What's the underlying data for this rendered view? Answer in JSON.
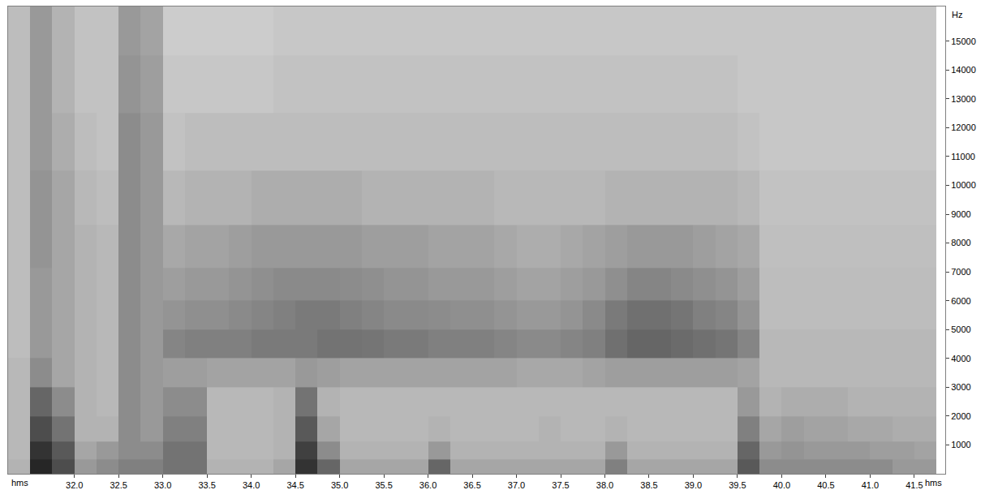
{
  "chart_data": {
    "type": "heatmap",
    "x_label": "hms",
    "y_label": "Hz",
    "x": [
      31.375,
      31.625,
      31.875,
      32.125,
      32.375,
      32.625,
      32.875,
      33.125,
      33.375,
      33.625,
      33.875,
      34.125,
      34.375,
      34.625,
      34.875,
      35.125,
      35.375,
      35.625,
      35.875,
      36.125,
      36.375,
      36.625,
      36.875,
      37.125,
      37.375,
      37.625,
      37.875,
      38.125,
      38.375,
      38.625,
      38.875,
      39.125,
      39.375,
      39.625,
      39.875,
      40.125,
      40.375,
      40.625,
      40.875,
      41.125,
      41.375,
      41.625
    ],
    "y": [
      250,
      750,
      1500,
      2500,
      3500,
      4500,
      5500,
      6500,
      7750,
      9500,
      11500,
      13500,
      15500
    ],
    "cells": [
      [
        30,
        85,
        70,
        40,
        45,
        50,
        50,
        55,
        55,
        30,
        30,
        30,
        35,
        80,
        60,
        35,
        35,
        35,
        35,
        60,
        35,
        35,
        35,
        35,
        35,
        35,
        35,
        50,
        35,
        35,
        35,
        35,
        35,
        65,
        45,
        45,
        45,
        45,
        45,
        45,
        40,
        40
      ],
      [
        28,
        80,
        65,
        35,
        40,
        45,
        45,
        55,
        55,
        28,
        28,
        28,
        30,
        75,
        45,
        30,
        30,
        30,
        30,
        40,
        30,
        30,
        30,
        30,
        30,
        30,
        30,
        40,
        30,
        30,
        30,
        30,
        30,
        60,
        40,
        42,
        40,
        40,
        40,
        38,
        38,
        36
      ],
      [
        28,
        70,
        55,
        30,
        30,
        45,
        40,
        50,
        50,
        28,
        28,
        28,
        30,
        65,
        35,
        28,
        28,
        28,
        28,
        30,
        28,
        28,
        28,
        28,
        30,
        28,
        28,
        30,
        28,
        28,
        28,
        28,
        28,
        50,
        35,
        38,
        36,
        36,
        34,
        34,
        32,
        32
      ],
      [
        28,
        60,
        45,
        30,
        28,
        45,
        40,
        45,
        45,
        28,
        28,
        28,
        30,
        55,
        30,
        28,
        28,
        28,
        28,
        28,
        28,
        28,
        28,
        28,
        28,
        28,
        28,
        28,
        28,
        28,
        28,
        28,
        28,
        40,
        30,
        32,
        32,
        32,
        30,
        30,
        30,
        30
      ],
      [
        28,
        45,
        35,
        30,
        28,
        45,
        40,
        38,
        38,
        36,
        36,
        36,
        36,
        40,
        38,
        36,
        36,
        36,
        36,
        36,
        36,
        36,
        36,
        34,
        34,
        34,
        36,
        38,
        38,
        38,
        38,
        38,
        38,
        36,
        28,
        28,
        28,
        28,
        28,
        28,
        28,
        28
      ],
      [
        26,
        40,
        35,
        30,
        28,
        45,
        40,
        48,
        50,
        50,
        50,
        52,
        52,
        52,
        55,
        55,
        54,
        52,
        52,
        50,
        50,
        50,
        48,
        46,
        46,
        48,
        50,
        56,
        60,
        60,
        58,
        56,
        54,
        48,
        28,
        28,
        28,
        28,
        28,
        28,
        28,
        28
      ],
      [
        26,
        40,
        35,
        30,
        28,
        45,
        40,
        42,
        44,
        44,
        46,
        48,
        50,
        52,
        52,
        50,
        48,
        46,
        46,
        45,
        44,
        44,
        42,
        40,
        40,
        42,
        46,
        52,
        56,
        56,
        54,
        50,
        48,
        42,
        26,
        26,
        26,
        26,
        26,
        26,
        26,
        26
      ],
      [
        26,
        40,
        35,
        30,
        28,
        45,
        40,
        38,
        40,
        40,
        42,
        44,
        46,
        46,
        46,
        45,
        44,
        42,
        42,
        40,
        40,
        40,
        38,
        36,
        36,
        38,
        40,
        44,
        48,
        48,
        46,
        44,
        42,
        38,
        26,
        26,
        26,
        26,
        26,
        26,
        26,
        26
      ],
      [
        26,
        42,
        35,
        30,
        28,
        45,
        40,
        34,
        36,
        36,
        38,
        40,
        40,
        40,
        40,
        40,
        38,
        38,
        38,
        36,
        36,
        36,
        34,
        32,
        32,
        34,
        36,
        38,
        40,
        40,
        40,
        38,
        36,
        34,
        25,
        25,
        25,
        25,
        25,
        25,
        25,
        25
      ],
      [
        26,
        42,
        35,
        28,
        26,
        45,
        40,
        28,
        30,
        30,
        30,
        32,
        32,
        32,
        32,
        32,
        30,
        30,
        30,
        30,
        30,
        30,
        28,
        28,
        28,
        28,
        28,
        30,
        30,
        30,
        30,
        30,
        30,
        28,
        24,
        24,
        24,
        24,
        24,
        24,
        24,
        24
      ],
      [
        26,
        40,
        32,
        26,
        24,
        45,
        40,
        24,
        26,
        26,
        26,
        26,
        26,
        26,
        26,
        26,
        26,
        26,
        26,
        26,
        26,
        26,
        26,
        26,
        26,
        26,
        26,
        26,
        26,
        26,
        26,
        26,
        26,
        24,
        22,
        22,
        22,
        22,
        22,
        22,
        22,
        22
      ],
      [
        26,
        40,
        30,
        24,
        24,
        42,
        38,
        22,
        22,
        22,
        22,
        22,
        24,
        24,
        24,
        24,
        24,
        24,
        24,
        24,
        24,
        24,
        24,
        24,
        24,
        24,
        24,
        24,
        24,
        24,
        24,
        24,
        24,
        22,
        22,
        22,
        22,
        22,
        22,
        22,
        22,
        22
      ],
      [
        26,
        40,
        30,
        24,
        24,
        40,
        36,
        20,
        20,
        20,
        20,
        20,
        22,
        22,
        22,
        22,
        22,
        22,
        22,
        22,
        22,
        22,
        22,
        22,
        22,
        22,
        22,
        22,
        22,
        22,
        22,
        22,
        22,
        22,
        22,
        22,
        22,
        22,
        22,
        22,
        22,
        22
      ]
    ],
    "zlim": [
      0,
      100
    ],
    "xlim": [
      31.25,
      41.85
    ],
    "ylim": [
      0,
      16200
    ],
    "xticks": [
      {
        "value": 32,
        "label": "32.0"
      },
      32.5,
      {
        "value": 33,
        "label": "33.0"
      },
      33.5,
      {
        "value": 34,
        "label": "34.0"
      },
      34.5,
      {
        "value": 35,
        "label": "35.0"
      },
      35.5,
      {
        "value": 36,
        "label": "36.0"
      },
      36.5,
      {
        "value": 37,
        "label": "37.0"
      },
      37.5,
      {
        "value": 38,
        "label": "38.0"
      },
      38.5,
      {
        "value": 39,
        "label": "39.0"
      },
      39.5,
      {
        "value": 40,
        "label": "40.0"
      },
      40.5,
      {
        "value": 41,
        "label": "41.0"
      },
      41.5
    ],
    "yticks": [
      1000,
      2000,
      3000,
      4000,
      5000,
      6000,
      7000,
      8000,
      9000,
      10000,
      11000,
      12000,
      13000,
      14000,
      15000
    ],
    "grid": false
  }
}
